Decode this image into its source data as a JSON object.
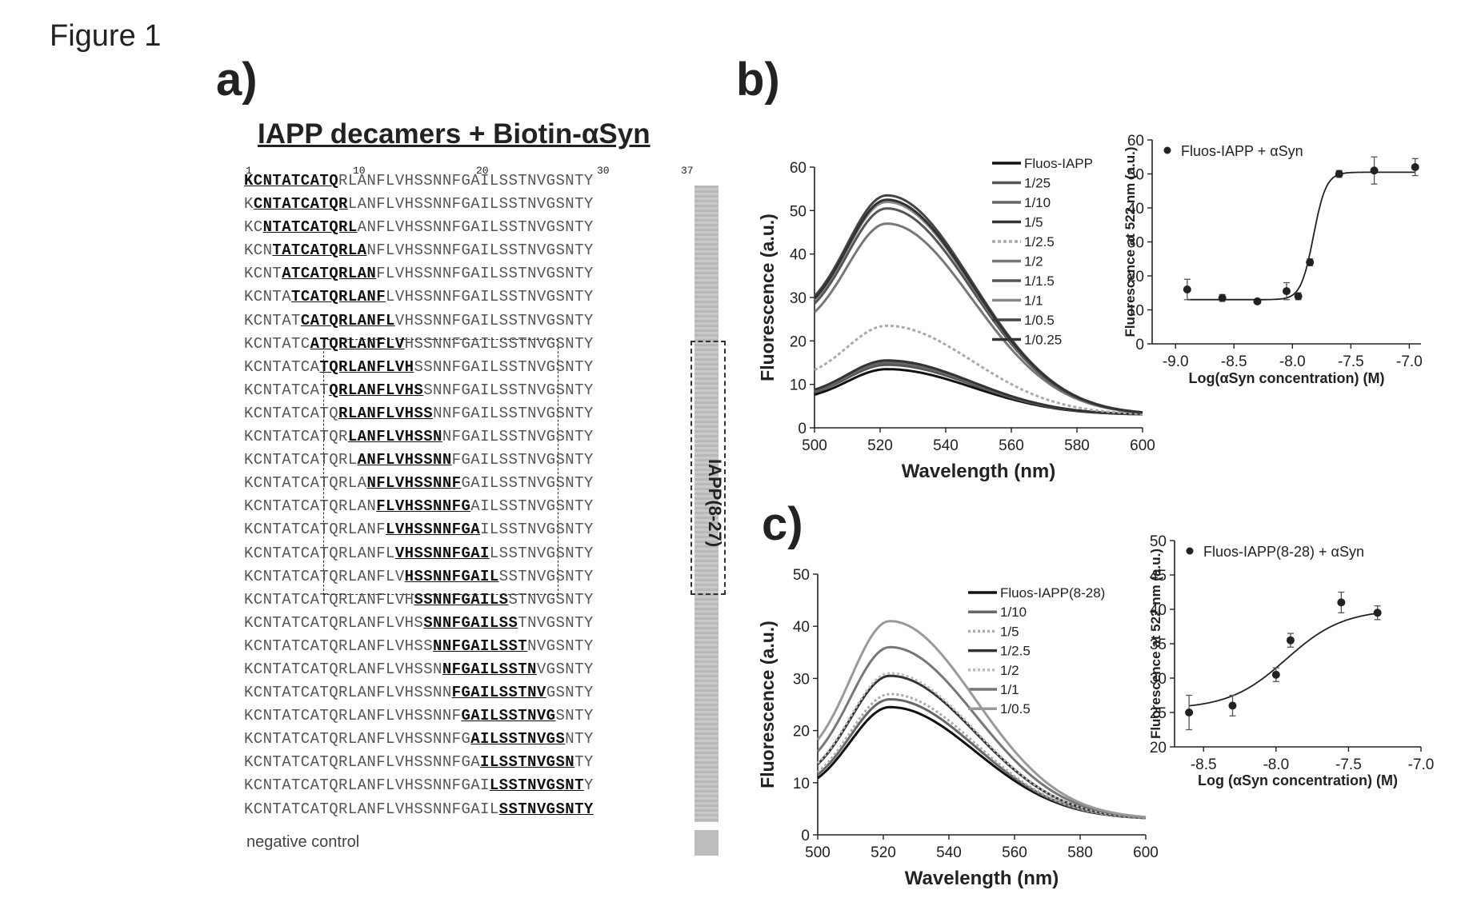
{
  "figure_title": "Figure 1",
  "panels": {
    "a": {
      "letter": "a)",
      "heading": "IAPP decamers + Biotin-αSyn",
      "position_labels": [
        "1",
        "10",
        "20",
        "30",
        "37"
      ],
      "sequence": "KCNTATCATQRLANFLVHSSNNFGAILSSTNVGSNTY",
      "decamer_count": 28,
      "negative_control_label": "negative control",
      "boxed_region_label": "IAPP(8-27)"
    },
    "b": {
      "letter": "b)"
    },
    "c": {
      "letter": "c)"
    }
  },
  "chart_data": [
    {
      "id": "b-spectra",
      "type": "line",
      "xlabel": "Wavelength (nm)",
      "ylabel": "Fluorescence (a.u.)",
      "xlim": [
        500,
        600
      ],
      "ylim": [
        0,
        60
      ],
      "xticks": [
        500,
        520,
        540,
        560,
        580,
        600
      ],
      "yticks": [
        0,
        10,
        20,
        30,
        40,
        50,
        60
      ],
      "legend": "top-right",
      "series": [
        {
          "name": "Fluos-IAPP",
          "peak": 13.5,
          "color": "#111"
        },
        {
          "name": "1/25",
          "peak": 14.5,
          "color": "#555"
        },
        {
          "name": "1/10",
          "peak": 15.0,
          "color": "#666"
        },
        {
          "name": "1/5",
          "peak": 15.5,
          "color": "#333"
        },
        {
          "name": "1/2.5",
          "peak": 23.5,
          "color": "#aaa"
        },
        {
          "name": "1/2",
          "peak": 47.0,
          "color": "#777"
        },
        {
          "name": "1/1.5",
          "peak": 50.5,
          "color": "#555"
        },
        {
          "name": "1/1",
          "peak": 52.0,
          "color": "#888"
        },
        {
          "name": "1/0.5",
          "peak": 53.5,
          "color": "#444"
        },
        {
          "name": "1/0.25",
          "peak": 52.5,
          "color": "#333"
        }
      ]
    },
    {
      "id": "b-dose",
      "type": "scatter",
      "xlabel": "Log(αSyn concentration) (M)",
      "ylabel": "Fluorescence at 522 nm (a.u.)",
      "xlim": [
        -9.2,
        -6.9
      ],
      "ylim": [
        0,
        60
      ],
      "xticks": [
        -9.0,
        -8.5,
        -8.0,
        -7.5,
        -7.0
      ],
      "xtick_labels": [
        "-9.0",
        "-8.5",
        "-8.0",
        "-7.5",
        "-7.0"
      ],
      "yticks": [
        0,
        10,
        20,
        30,
        40,
        50,
        60
      ],
      "legend": "Fluos-IAPP + αSyn",
      "x": [
        -8.9,
        -8.6,
        -8.3,
        -8.05,
        -7.95,
        -7.85,
        -7.6,
        -7.3,
        -6.95
      ],
      "y": [
        16,
        13.5,
        12.5,
        15.5,
        14,
        24,
        50,
        51,
        52
      ],
      "err": [
        3,
        1,
        0.5,
        2.5,
        1,
        1,
        1,
        4,
        2.5
      ],
      "fit": {
        "bottom": 13,
        "top": 50.5,
        "logEC50": -7.82,
        "hill": 8
      }
    },
    {
      "id": "c-spectra",
      "type": "line",
      "xlabel": "Wavelength (nm)",
      "ylabel": "Fluorescence (a.u.)",
      "xlim": [
        500,
        600
      ],
      "ylim": [
        0,
        50
      ],
      "xticks": [
        500,
        520,
        540,
        560,
        580,
        600
      ],
      "yticks": [
        0,
        10,
        20,
        30,
        40,
        50
      ],
      "legend": "top-right",
      "series": [
        {
          "name": "Fluos-IAPP(8-28)",
          "peak": 24.5,
          "color": "#111"
        },
        {
          "name": "1/10",
          "peak": 26.0,
          "color": "#666"
        },
        {
          "name": "1/5",
          "peak": 27.0,
          "color": "#aaa"
        },
        {
          "name": "1/2.5",
          "peak": 30.5,
          "color": "#333"
        },
        {
          "name": "1/2",
          "peak": 31.0,
          "color": "#bbb"
        },
        {
          "name": "1/1",
          "peak": 36.0,
          "color": "#777"
        },
        {
          "name": "1/0.5",
          "peak": 41.0,
          "color": "#999"
        }
      ]
    },
    {
      "id": "c-dose",
      "type": "scatter",
      "xlabel": "Log (αSyn concentration) (M)",
      "ylabel": "Fluorescence at 522 nm (a.u.)",
      "xlim": [
        -8.7,
        -7.0
      ],
      "ylim": [
        20,
        50
      ],
      "xticks": [
        -8.5,
        -8.0,
        -7.5,
        -7.0
      ],
      "xtick_labels": [
        "-8.5",
        "-8.0",
        "-7.5",
        "-7.0"
      ],
      "yticks": [
        20,
        25,
        30,
        35,
        40,
        45,
        50
      ],
      "legend": "Fluos-IAPP(8-28) + αSyn",
      "x": [
        -8.6,
        -8.3,
        -8.0,
        -7.9,
        -7.55,
        -7.3
      ],
      "y": [
        25,
        26,
        30.5,
        35.5,
        41,
        39.5
      ],
      "err": [
        2.5,
        1.5,
        1,
        1,
        1.5,
        1
      ],
      "fit": {
        "bottom": 25.5,
        "top": 40,
        "logEC50": -7.93,
        "hill": 2.2
      }
    }
  ]
}
